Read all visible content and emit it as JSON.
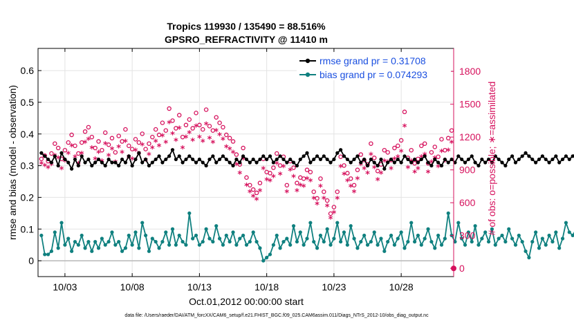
{
  "chart_data": {
    "type": "line",
    "title": [
      "Tropics 119930 / 135490 = 88.516%",
      "GPSRO_REFRACTIVITY @ 11410 m"
    ],
    "xlabel": "Oct.01,2012 00:00:00 start",
    "ylabel_left": "rmse and bias (model - observation)",
    "ylabel_right": "# of obs: o=possible; ∗=assimilated",
    "xlim": [
      1.0,
      31.9
    ],
    "ylim_left": [
      -0.05,
      0.67
    ],
    "ylim_right": [
      -75,
      2010
    ],
    "x_ticks": [
      3,
      8,
      13,
      18,
      23,
      28
    ],
    "x_tick_labels": [
      "10/03",
      "10/08",
      "10/13",
      "10/18",
      "10/23",
      "10/28"
    ],
    "y_ticks_left": [
      0,
      0.1,
      0.2,
      0.3,
      0.4,
      0.5,
      0.6
    ],
    "y_tick_labels_left": [
      "0",
      "0.1",
      "0.2",
      "0.3",
      "0.4",
      "0.5",
      "0.6"
    ],
    "y_ticks_right": [
      0,
      300,
      600,
      900,
      1200,
      1500,
      1800
    ],
    "y_tick_labels_right": [
      "0",
      "300",
      "600",
      "900",
      "1200",
      "1500",
      "1800"
    ],
    "grid": true,
    "legend_position": "top-right",
    "legend": [
      "rmse grand pr = 0.31708",
      "bias grand pr = 0.074293"
    ],
    "colors": {
      "rmse": "#000000",
      "bias": "#0f807f",
      "obs": "#d6105c",
      "zero": "#b8b8b8",
      "axis": "#000000",
      "legend_text": "#1a4fe0"
    },
    "series": [
      {
        "name": "rmse",
        "x_start": 1.25,
        "x_step": 0.25,
        "values": [
          0.34,
          0.33,
          0.32,
          0.31,
          0.33,
          0.3,
          0.34,
          0.32,
          0.31,
          0.29,
          0.32,
          0.3,
          0.33,
          0.31,
          0.32,
          0.3,
          0.31,
          0.32,
          0.31,
          0.3,
          0.32,
          0.31,
          0.31,
          0.3,
          0.32,
          0.31,
          0.33,
          0.3,
          0.32,
          0.34,
          0.31,
          0.32,
          0.3,
          0.31,
          0.32,
          0.33,
          0.31,
          0.32,
          0.33,
          0.35,
          0.32,
          0.33,
          0.31,
          0.32,
          0.33,
          0.32,
          0.31,
          0.32,
          0.31,
          0.3,
          0.32,
          0.33,
          0.31,
          0.32,
          0.33,
          0.32,
          0.31,
          0.3,
          0.32,
          0.31,
          0.33,
          0.32,
          0.31,
          0.32,
          0.31,
          0.32,
          0.33,
          0.32,
          0.33,
          0.31,
          0.32,
          0.33,
          0.32,
          0.31,
          0.32,
          0.31,
          0.3,
          0.32,
          0.33,
          0.34,
          0.31,
          0.32,
          0.33,
          0.32,
          0.33,
          0.32,
          0.31,
          0.32,
          0.34,
          0.35,
          0.33,
          0.32,
          0.31,
          0.32,
          0.33,
          0.31,
          0.32,
          0.3,
          0.32,
          0.31,
          0.3,
          0.32,
          0.29,
          0.31,
          0.32,
          0.31,
          0.32,
          0.31,
          0.33,
          0.32,
          0.31,
          0.32,
          0.31,
          0.32,
          0.33,
          0.31,
          0.3,
          0.32,
          0.31,
          0.3,
          0.32,
          0.31,
          0.32,
          0.31,
          0.33,
          0.32,
          0.31,
          0.32,
          0.33,
          0.31,
          0.3,
          0.32,
          0.31,
          0.32,
          0.31,
          0.33,
          0.32,
          0.31,
          0.3,
          0.32,
          0.33,
          0.31,
          0.32,
          0.33,
          0.34,
          0.33,
          0.32,
          0.31,
          0.32,
          0.33,
          0.32,
          0.31,
          0.32,
          0.33,
          0.31,
          0.32,
          0.33,
          0.32,
          0.33,
          0.34,
          0.32,
          0.33,
          0.31,
          0.33,
          0.32,
          0.33,
          0.34,
          0.33,
          0.32,
          0.33,
          0.32,
          0.31,
          0.33,
          0.3,
          0.31,
          0.29,
          0.3,
          0.31
        ]
      },
      {
        "name": "bias",
        "x_start": 1.25,
        "x_step": 0.25,
        "values": [
          0.08,
          0.02,
          0.02,
          0.03,
          0.09,
          0.04,
          0.12,
          0.05,
          0.07,
          0.03,
          0.06,
          0.05,
          0.08,
          0.04,
          0.06,
          0.03,
          0.06,
          0.04,
          0.07,
          0.05,
          0.06,
          0.09,
          0.05,
          0.06,
          0.03,
          0.04,
          0.08,
          0.05,
          0.09,
          0.04,
          0.12,
          0.08,
          0.03,
          0.07,
          0.06,
          0.04,
          0.06,
          0.09,
          0.05,
          0.1,
          0.05,
          0.08,
          0.06,
          0.05,
          0.15,
          0.07,
          0.08,
          0.05,
          0.06,
          0.1,
          0.07,
          0.06,
          0.11,
          0.07,
          0.05,
          0.08,
          0.06,
          0.09,
          0.05,
          0.07,
          0.08,
          0.05,
          0.06,
          0.09,
          0.06,
          0.04,
          0.0,
          0.01,
          0.02,
          0.05,
          0.08,
          0.04,
          0.06,
          0.07,
          0.05,
          0.11,
          0.06,
          0.09,
          0.05,
          0.07,
          0.12,
          0.06,
          0.04,
          0.08,
          0.06,
          0.1,
          0.05,
          0.07,
          0.12,
          0.06,
          0.09,
          0.05,
          0.11,
          0.07,
          0.04,
          0.06,
          0.08,
          0.05,
          0.06,
          0.09,
          0.05,
          0.07,
          0.03,
          0.06,
          0.08,
          0.05,
          0.07,
          0.09,
          0.04,
          0.06,
          0.12,
          0.06,
          0.08,
          0.05,
          0.07,
          0.1,
          0.06,
          0.04,
          0.08,
          0.05,
          0.07,
          0.15,
          0.08,
          0.06,
          0.12,
          0.07,
          0.05,
          0.09,
          0.06,
          0.11,
          0.05,
          0.07,
          0.09,
          0.06,
          0.1,
          0.05,
          0.07,
          0.08,
          0.06,
          0.1,
          0.07,
          0.05,
          0.08,
          0.06,
          0.03,
          0.01,
          0.06,
          0.09,
          0.04,
          0.07,
          0.05,
          0.08,
          0.06,
          0.09,
          0.04,
          0.07,
          0.12,
          0.09,
          0.08,
          0.1,
          0.07,
          0.09,
          0.06,
          0.1,
          0.07,
          0.09,
          0.06,
          0.08,
          0.07,
          0.09,
          0.06,
          0.08,
          0.05,
          0.04
        ]
      },
      {
        "name": "possible",
        "marker": "o",
        "x_start": 1.25,
        "x_step": 0.25,
        "values": [
          1000,
          1030,
          980,
          1050,
          1140,
          1100,
          1000,
          1080,
          1150,
          1220,
          1120,
          1050,
          1150,
          1250,
          1290,
          1200,
          1100,
          1160,
          1080,
          1240,
          1130,
          1190,
          1060,
          1210,
          1160,
          1270,
          1120,
          1090,
          1180,
          1150,
          1230,
          1090,
          1140,
          1200,
          1270,
          1220,
          1330,
          1260,
          1460,
          1350,
          1280,
          1400,
          1200,
          1310,
          1360,
          1280,
          1420,
          1310,
          1270,
          1450,
          1300,
          1260,
          1380,
          1330,
          1290,
          1220,
          1190,
          1160,
          1040,
          950,
          1100,
          830,
          760,
          720,
          690,
          780,
          1000,
          880,
          870,
          920,
          1050,
          940,
          1020,
          760,
          980,
          920,
          780,
          830,
          820,
          900,
          880,
          700,
          640,
          820,
          700,
          620,
          500,
          560,
          700,
          1020,
          940,
          870,
          820,
          760,
          900,
          1040,
          990,
          950,
          1140,
          1010,
          890,
          950,
          1080,
          1060,
          990,
          1100,
          1120,
          1170,
          1430,
          1010,
          1080,
          960,
          1000,
          1120,
          1140,
          960,
          1060,
          1110,
          1020,
          1180,
          1080,
          1190,
          1260,
          1220,
          1280,
          1230,
          1160,
          1420,
          1250,
          1200,
          1140,
          1250,
          1230,
          1020,
          1000,
          1120,
          1040,
          1120,
          1200,
          1160,
          1240,
          1140,
          1210,
          1270,
          1180,
          1240,
          1270,
          1160,
          1220,
          1290,
          1210,
          1250,
          1170,
          1230,
          1350,
          1290,
          1200,
          1140,
          1260,
          1320,
          1250,
          1200,
          1180,
          1260,
          1350,
          1190,
          1230,
          1290,
          1260,
          1180,
          1130,
          1330,
          1220,
          1300,
          1370,
          1240,
          1340,
          1200,
          1240
        ]
      },
      {
        "name": "assimilated",
        "marker": "*",
        "x_start": 1.25,
        "x_step": 0.25,
        "values": [
          950,
          930,
          910,
          940,
          1020,
          1000,
          900,
          970,
          1040,
          1110,
          1010,
          950,
          1040,
          1140,
          1170,
          1090,
          990,
          1050,
          970,
          1130,
          1020,
          1080,
          960,
          1100,
          1050,
          1150,
          1010,
          990,
          1070,
          1040,
          1120,
          980,
          1030,
          1090,
          1150,
          1110,
          1200,
          1140,
          1320,
          1220,
          1160,
          1270,
          1090,
          1190,
          1230,
          1160,
          1290,
          1190,
          1150,
          1310,
          1180,
          1140,
          1250,
          1210,
          1170,
          1100,
          1080,
          1050,
          940,
          860,
          990,
          750,
          690,
          650,
          620,
          700,
          900,
          800,
          790,
          830,
          950,
          850,
          920,
          690,
          890,
          830,
          700,
          750,
          740,
          810,
          790,
          630,
          580,
          740,
          630,
          560,
          450,
          500,
          630,
          920,
          850,
          790,
          740,
          690,
          810,
          940,
          900,
          860,
          1030,
          910,
          800,
          860,
          970,
          960,
          900,
          990,
          1010,
          1060,
          1290,
          910,
          970,
          870,
          900,
          1010,
          1030,
          870,
          960,
          1000,
          920,
          1060,
          970,
          1070,
          1140,
          1100,
          1150,
          1110,
          1040,
          1280,
          1130,
          1080,
          1030,
          1130,
          1110,
          920,
          900,
          1010,
          940,
          1010,
          1080,
          1050,
          1120,
          1030,
          1090,
          1140,
          1060,
          1120,
          1140,
          1050,
          1100,
          1160,
          1090,
          1120,
          1050,
          1110,
          1220,
          1160,
          1080,
          1030,
          1130,
          1190,
          1130,
          1080,
          1060,
          1130,
          1220,
          1070,
          1110,
          1160,
          1130,
          1060,
          1020,
          1200,
          1100,
          1170,
          1230,
          1120,
          1210,
          1080,
          1120
        ]
      }
    ]
  },
  "footer": "data file: /Users/raeder/DAI/ATM_forcXX/CAM6_setup/f.e21.FHIST_BGC.f09_025.CAM6assim.011/Diags_NTrS_2012-10/obs_diag_output.nc"
}
